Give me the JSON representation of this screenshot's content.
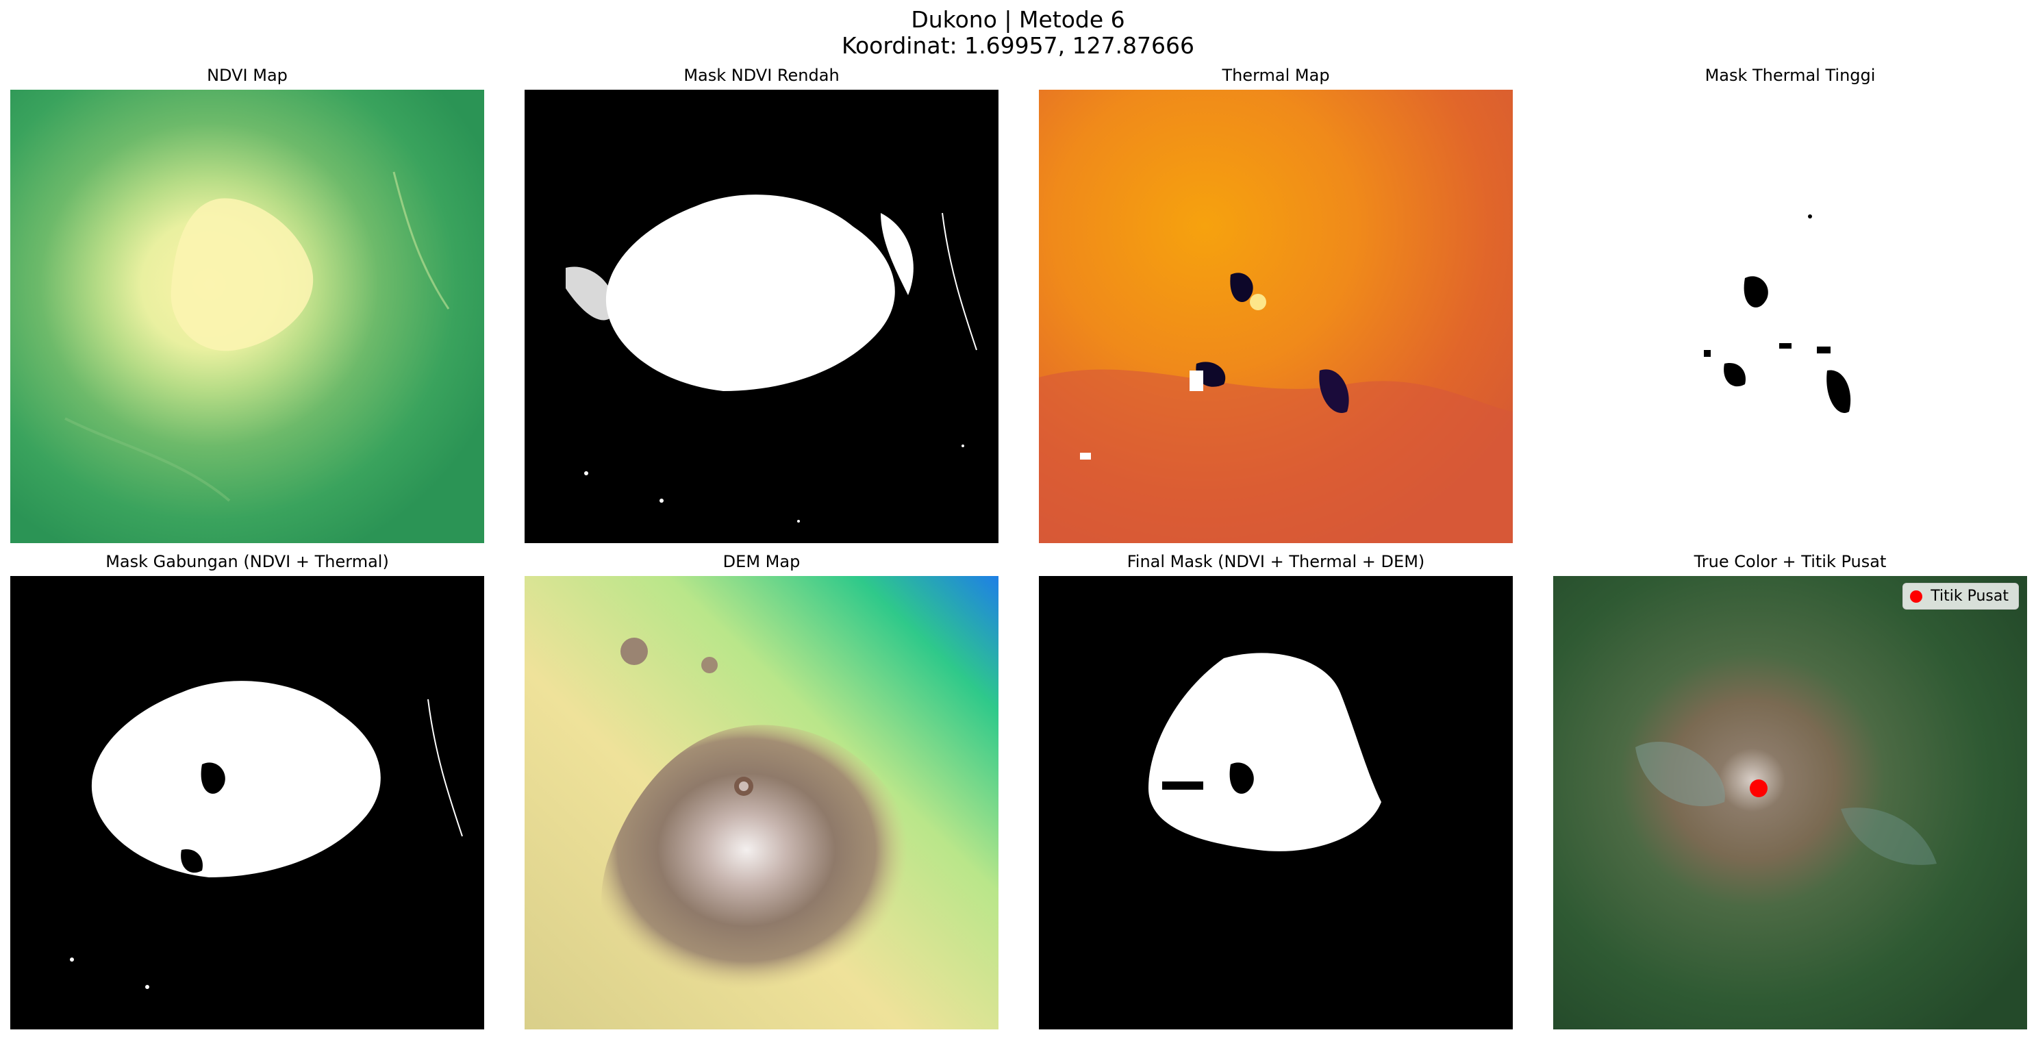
{
  "figure": {
    "title_line1": "Dukono | Metode 6",
    "title_line2": "Koordinat: 1.69957, 127.87666"
  },
  "panels": [
    {
      "title": "NDVI Map",
      "colormap": "summer-yellow-green"
    },
    {
      "title": "Mask NDVI Rendah",
      "colormap": "binary-gray"
    },
    {
      "title": "Thermal Map",
      "colormap": "inferno-orange"
    },
    {
      "title": "Mask Thermal Tinggi",
      "colormap": "binary-gray"
    },
    {
      "title": "Mask Gabungan (NDVI + Thermal)",
      "colormap": "binary-gray"
    },
    {
      "title": "DEM Map",
      "colormap": "terrain"
    },
    {
      "title": "Final Mask (NDVI + Thermal + DEM)",
      "colormap": "binary-gray"
    },
    {
      "title": "True Color + Titik Pusat",
      "colormap": "rgb"
    }
  ],
  "legend": {
    "label": "Titik Pusat",
    "marker_color": "#ff0000"
  }
}
